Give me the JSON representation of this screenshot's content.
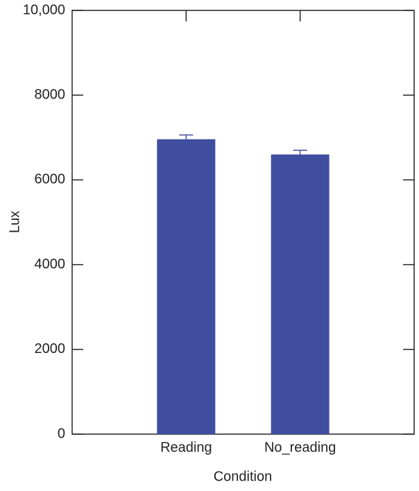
{
  "chart_data": {
    "type": "bar",
    "x_label": "Condition",
    "y_label": "Lux",
    "categories": [
      "Reading",
      "No_reading"
    ],
    "values": [
      6960,
      6600
    ],
    "errors": [
      100,
      100
    ],
    "color": "#3f4e9f",
    "ylim": [
      0,
      10000
    ],
    "yticks": [
      0,
      2000,
      4000,
      6000,
      8000,
      {
        "value": 10000,
        "label": "10,000"
      }
    ],
    "grid": false
  }
}
